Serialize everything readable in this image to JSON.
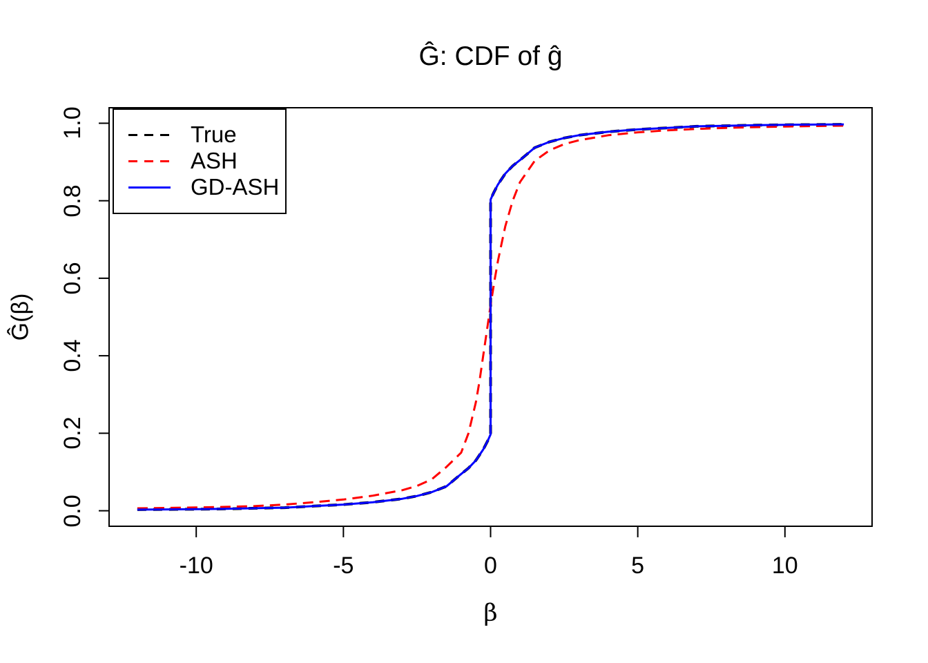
{
  "chart_data": {
    "type": "line",
    "title": "Ĝ: CDF of ĝ",
    "xlabel": "β",
    "ylabel": "Ĝ(β)",
    "xlim": [
      -12.96,
      12.96
    ],
    "ylim": [
      -0.04,
      1.04
    ],
    "x_ticks": [
      -10,
      -5,
      0,
      5,
      10
    ],
    "x_tick_labels": [
      "-10",
      "-5",
      "0",
      "5",
      "10"
    ],
    "y_ticks": [
      0.0,
      0.2,
      0.4,
      0.6,
      0.8,
      1.0
    ],
    "y_tick_labels": [
      "0.0",
      "0.2",
      "0.4",
      "0.6",
      "0.8",
      "1.0"
    ],
    "grid": false,
    "legend_position": "topleft",
    "background_color": "#ffffff",
    "axis_color": "#000000",
    "series": [
      {
        "name": "True",
        "color": "#000000",
        "line_style": "dashed",
        "points": [
          [
            -12,
            0.003
          ],
          [
            -11,
            0.0035
          ],
          [
            -10,
            0.004
          ],
          [
            -9,
            0.005
          ],
          [
            -8,
            0.0065
          ],
          [
            -7,
            0.008
          ],
          [
            -6,
            0.012
          ],
          [
            -5,
            0.016
          ],
          [
            -4,
            0.022
          ],
          [
            -3,
            0.031
          ],
          [
            -2.5,
            0.038
          ],
          [
            -2,
            0.048
          ],
          [
            -1.5,
            0.063
          ],
          [
            -1,
            0.095
          ],
          [
            -0.75,
            0.11
          ],
          [
            -0.5,
            0.13
          ],
          [
            -0.25,
            0.158
          ],
          [
            -0.1,
            0.18
          ],
          [
            0,
            0.197
          ],
          [
            0,
            0.803
          ],
          [
            0.1,
            0.82
          ],
          [
            0.25,
            0.842
          ],
          [
            0.5,
            0.87
          ],
          [
            0.75,
            0.89
          ],
          [
            1,
            0.905
          ],
          [
            1.5,
            0.937
          ],
          [
            2,
            0.952
          ],
          [
            2.5,
            0.962
          ],
          [
            3,
            0.969
          ],
          [
            4,
            0.978
          ],
          [
            5,
            0.984
          ],
          [
            6,
            0.988
          ],
          [
            7,
            0.992
          ],
          [
            8,
            0.9935
          ],
          [
            9,
            0.995
          ],
          [
            10,
            0.996
          ],
          [
            11,
            0.9965
          ],
          [
            12,
            0.997
          ]
        ]
      },
      {
        "name": "ASH",
        "color": "#ff0000",
        "line_style": "dashed",
        "points": [
          [
            -12,
            0.0063
          ],
          [
            -11,
            0.0073
          ],
          [
            -10,
            0.0085
          ],
          [
            -9,
            0.01
          ],
          [
            -8,
            0.012
          ],
          [
            -7,
            0.016
          ],
          [
            -6,
            0.022
          ],
          [
            -5,
            0.029
          ],
          [
            -4,
            0.039
          ],
          [
            -3,
            0.053
          ],
          [
            -2.5,
            0.064
          ],
          [
            -2,
            0.081
          ],
          [
            -1.5,
            0.113
          ],
          [
            -1,
            0.15
          ],
          [
            -0.75,
            0.2
          ],
          [
            -0.5,
            0.28
          ],
          [
            -0.375,
            0.335
          ],
          [
            -0.25,
            0.4
          ],
          [
            -0.125,
            0.465
          ],
          [
            0,
            0.53
          ],
          [
            0.125,
            0.59
          ],
          [
            0.25,
            0.645
          ],
          [
            0.375,
            0.69
          ],
          [
            0.5,
            0.734
          ],
          [
            0.75,
            0.8
          ],
          [
            1,
            0.848
          ],
          [
            1.5,
            0.903
          ],
          [
            2,
            0.93
          ],
          [
            2.5,
            0.946
          ],
          [
            3,
            0.956
          ],
          [
            4,
            0.969
          ],
          [
            5,
            0.9766
          ],
          [
            6,
            0.9817
          ],
          [
            7,
            0.9853
          ],
          [
            8,
            0.988
          ],
          [
            9,
            0.99
          ],
          [
            10,
            0.9915
          ],
          [
            11,
            0.9927
          ],
          [
            12,
            0.9937
          ]
        ]
      },
      {
        "name": "GD-ASH",
        "color": "#0000ff",
        "line_style": "solid",
        "points": [
          [
            -12,
            0.003
          ],
          [
            -11,
            0.0035
          ],
          [
            -10,
            0.004
          ],
          [
            -9,
            0.005
          ],
          [
            -8,
            0.0065
          ],
          [
            -7,
            0.008
          ],
          [
            -6,
            0.012
          ],
          [
            -5,
            0.016
          ],
          [
            -4,
            0.022
          ],
          [
            -3,
            0.031
          ],
          [
            -2.5,
            0.038
          ],
          [
            -2,
            0.048
          ],
          [
            -1.5,
            0.063
          ],
          [
            -1,
            0.095
          ],
          [
            -0.75,
            0.11
          ],
          [
            -0.5,
            0.13
          ],
          [
            -0.25,
            0.158
          ],
          [
            -0.1,
            0.18
          ],
          [
            0,
            0.197
          ],
          [
            0,
            0.803
          ],
          [
            0.1,
            0.82
          ],
          [
            0.25,
            0.842
          ],
          [
            0.5,
            0.87
          ],
          [
            0.75,
            0.89
          ],
          [
            1,
            0.905
          ],
          [
            1.5,
            0.937
          ],
          [
            2,
            0.952
          ],
          [
            2.5,
            0.962
          ],
          [
            3,
            0.969
          ],
          [
            4,
            0.978
          ],
          [
            5,
            0.984
          ],
          [
            6,
            0.988
          ],
          [
            7,
            0.992
          ],
          [
            8,
            0.9935
          ],
          [
            9,
            0.995
          ],
          [
            10,
            0.996
          ],
          [
            11,
            0.9965
          ],
          [
            12,
            0.997
          ]
        ]
      }
    ]
  }
}
